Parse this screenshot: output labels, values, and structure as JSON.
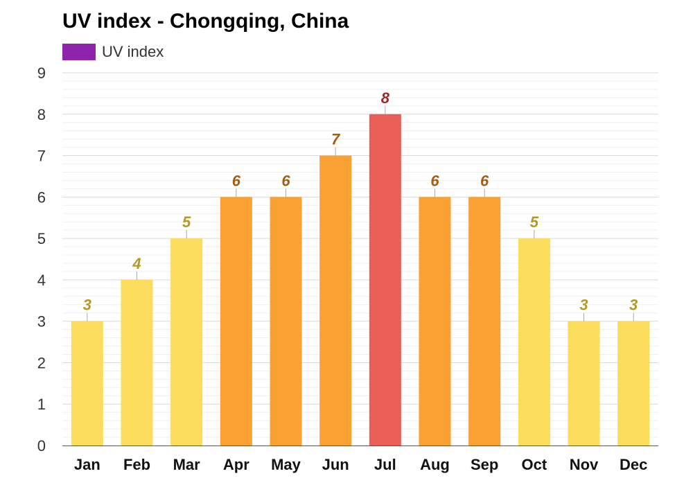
{
  "colors": {
    "legend": "#8e24aa",
    "low": "#fcdc5c",
    "moderate": "#fba033",
    "high": "#ea5e58",
    "label_low": "#b39a20",
    "label_moderate": "#a55c10",
    "label_high": "#a02828"
  },
  "chart_data": {
    "type": "bar",
    "title": "UV index - Chongqing, China",
    "xlabel": "",
    "ylabel": "",
    "ylim": [
      0,
      9
    ],
    "yticks": [
      0,
      1,
      2,
      3,
      4,
      5,
      6,
      7,
      8,
      9
    ],
    "categories": [
      "Jan",
      "Feb",
      "Mar",
      "Apr",
      "May",
      "Jun",
      "Jul",
      "Aug",
      "Sep",
      "Oct",
      "Nov",
      "Dec"
    ],
    "series": [
      {
        "name": "UV index",
        "values": [
          3,
          4,
          5,
          6,
          6,
          7,
          8,
          6,
          6,
          5,
          3,
          3
        ]
      }
    ],
    "data_labels": [
      "3",
      "4",
      "5",
      "6",
      "6",
      "7",
      "8",
      "6",
      "6",
      "5",
      "3",
      "3"
    ],
    "legend_position": "top-left",
    "grid": true
  }
}
